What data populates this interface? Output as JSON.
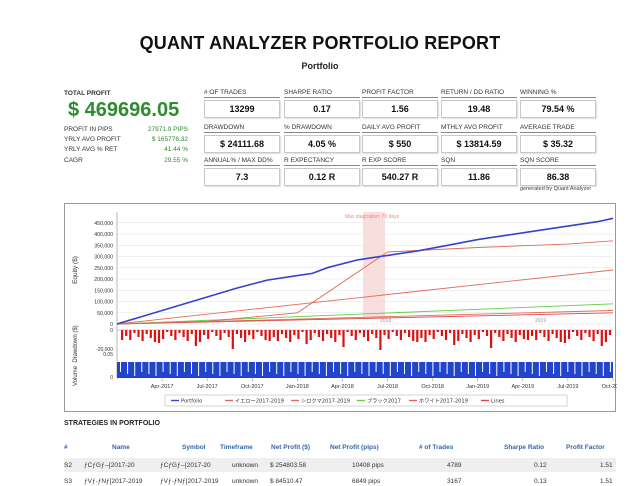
{
  "header": {
    "title": "QUANT ANALYZER PORTFOLIO REPORT",
    "subtitle": "Portfolio"
  },
  "summary": {
    "total_profit_label": "TOTAL PROFIT",
    "total_profit_value": "$ 469696.05",
    "rows": [
      {
        "label": "PROFIT IN PIPS",
        "value": "27971.9 PIPS"
      },
      {
        "label": "YRLY AVG PROFIT",
        "value": "$ 165776.32"
      },
      {
        "label": "YRLY AVG % RET",
        "value": "41.44 %"
      },
      {
        "label": "CAGR",
        "value": "29.55 %"
      }
    ]
  },
  "metrics": [
    {
      "label": "# OF TRADES",
      "value": "13299"
    },
    {
      "label": "SHARPE RATIO",
      "value": "0.17"
    },
    {
      "label": "PROFIT FACTOR",
      "value": "1.56"
    },
    {
      "label": "RETURN / DD RATIO",
      "value": "19.48"
    },
    {
      "label": "WINNING %",
      "value": "79.54 %"
    },
    {
      "label": "DRAWDOWN",
      "value": "$ 24111.68"
    },
    {
      "label": "% DRAWDOWN",
      "value": "4.05 %"
    },
    {
      "label": "DAILY AVG PROFIT",
      "value": "$ 550"
    },
    {
      "label": "MTHLY AVG PROFIT",
      "value": "$ 13814.59"
    },
    {
      "label": "AVERAGE TRADE",
      "value": "$ 35.32"
    },
    {
      "label": "ANNUAL% / MAX DD%",
      "value": "7.3"
    },
    {
      "label": "R EXPECTANCY",
      "value": "0.12 R"
    },
    {
      "label": "R EXP SCORE",
      "value": "540.27 R"
    },
    {
      "label": "SQN",
      "value": "11.86"
    },
    {
      "label": "SQN SCORE",
      "value": "86.38"
    }
  ],
  "generated_by": "generated by Quant Analyzer",
  "chart_data": {
    "type": "line",
    "equity_axis_label": "Equity ($)",
    "drawdown_axis_label": "Drawdown ($)",
    "volume_axis_label": "Volume",
    "equity_ticks": [
      "450,000",
      "400,000",
      "350,000",
      "300,000",
      "250,000",
      "200,000",
      "150,000",
      "100,000",
      "50,000",
      "0"
    ],
    "equity_tick_values": [
      450000,
      400000,
      350000,
      300000,
      250000,
      200000,
      150000,
      100000,
      50000,
      0
    ],
    "drawdown_ticks": [
      "0",
      "-20,000"
    ],
    "volume_ticks": [
      "0.05",
      "0"
    ],
    "ylim": [
      0,
      480000
    ],
    "x_ticks": [
      "Apr-2017",
      "Jul-2017",
      "Oct-2017",
      "Jan-2018",
      "Apr-2018",
      "Jul-2018",
      "Oct-2018",
      "Jan-2019",
      "Apr-2019",
      "Jul-2019",
      "Oct-2019"
    ],
    "x_tick_positions": [
      3,
      6,
      9,
      12,
      15,
      18,
      21,
      24,
      27,
      30,
      33
    ],
    "x_range": [
      0,
      33
    ],
    "annotation": "Max stagnation: 70 days",
    "year_marks": [
      "2018",
      "2019"
    ],
    "series": [
      {
        "name": "Portfolio",
        "color": "#3344cc",
        "x": [
          0,
          2,
          4,
          6,
          8,
          10,
          12,
          13,
          14,
          16,
          18,
          20,
          22,
          24,
          26,
          28,
          30,
          32,
          33
        ],
        "values": [
          0,
          40000,
          80000,
          120000,
          160000,
          195000,
          215000,
          225000,
          250000,
          285000,
          305000,
          325000,
          350000,
          375000,
          395000,
          415000,
          435000,
          455000,
          470000
        ]
      },
      {
        "name": "イエロー2017-2019",
        "color": "#e06a5a",
        "x": [
          0,
          33
        ],
        "values": [
          0,
          240000
        ]
      },
      {
        "name": "シロクマ2017-2019",
        "color": "#e06a5a",
        "x": [
          0,
          6,
          12,
          18,
          24,
          30,
          33
        ],
        "values": [
          0,
          12000,
          50000,
          320000,
          340000,
          355000,
          370000
        ]
      },
      {
        "name": "ブラック2017",
        "color": "#66cc44",
        "x": [
          0,
          33
        ],
        "values": [
          0,
          90000
        ]
      },
      {
        "name": "ホワイト2017-2019",
        "color": "#e06a5a",
        "x": [
          0,
          33
        ],
        "values": [
          0,
          60000
        ]
      },
      {
        "name": "Lines",
        "color": "#e04444",
        "x": [
          0,
          33
        ],
        "values": [
          0,
          50000
        ]
      }
    ],
    "legend": [
      "Portfolio",
      "イエロー2017-2019",
      "シロクマ2017-2019",
      "ブラック2017",
      "ホワイト2017-2019",
      "Lines"
    ]
  },
  "strategies": {
    "title": "STRATEGIES IN PORTFOLIO",
    "columns": [
      "#",
      "Name",
      "Symbol",
      "Timeframe",
      "Net Profit ($)",
      "Net Profit (pips)",
      "# of Trades",
      "Sharpe Ratio",
      "Profit Factor"
    ],
    "rows": [
      [
        "S2",
        "ƒCƒGƒ--[2017-20",
        "ƒCƒGƒ--[2017-20",
        "unknown",
        "$ 254803.58",
        "10408 pips",
        "4789",
        "0.12",
        "1.51"
      ],
      [
        "S3",
        "ƒVƒ-ƒNƒ[2017-2019",
        "ƒVƒ-ƒNƒ[2017-2019",
        "unknown",
        "$ 84510.47",
        "6849 pips",
        "3167",
        "0.13",
        "1.51"
      ]
    ]
  }
}
